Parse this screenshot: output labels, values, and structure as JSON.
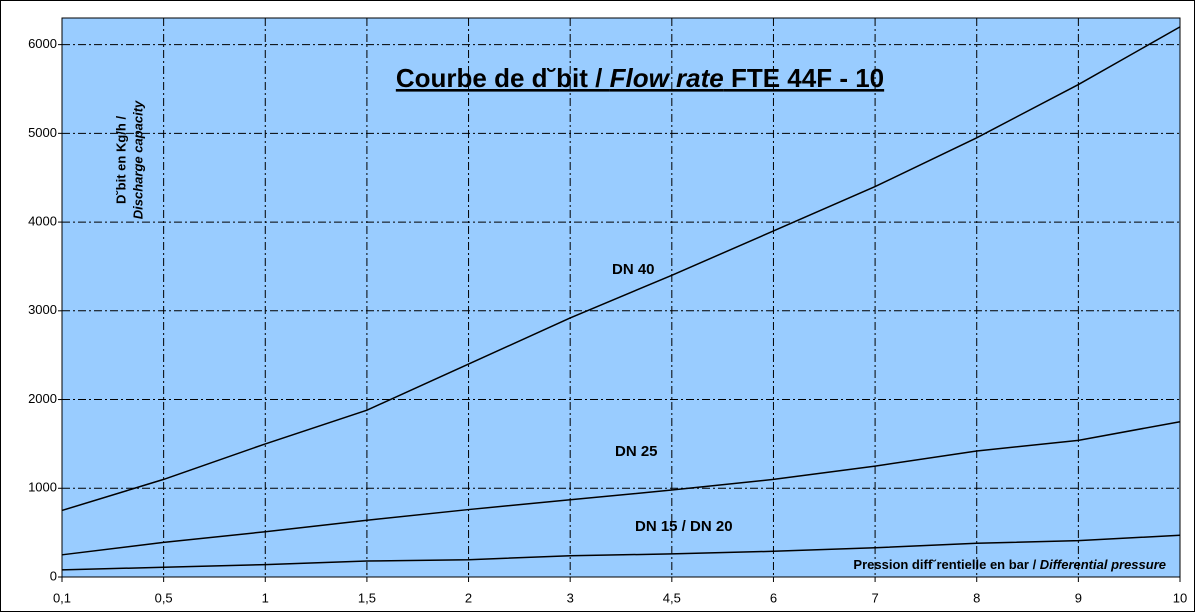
{
  "chart_data": {
    "type": "line",
    "title_start": "Courbe de d˘bit / ",
    "title_italic": "Flow rate",
    "title_end": " FTE 44F - 10",
    "ylabel_line1": "D˘bit en Kg/h /",
    "ylabel_line2": "Discharge capacity",
    "xlabel_start": "Pression diff˘rentielle en bar / ",
    "xlabel_italic": "Differential pressure",
    "categories": [
      "0,1",
      "0,5",
      "1",
      "1,5",
      "2",
      "3",
      "4,5",
      "6",
      "7",
      "8",
      "9",
      "10"
    ],
    "series": [
      {
        "name": "DN 40",
        "color": "#000000",
        "values": [
          750,
          1100,
          1500,
          1880,
          2400,
          2920,
          3400,
          3900,
          4400,
          4950,
          5550,
          6200
        ]
      },
      {
        "name": "DN 25",
        "color": "#000000",
        "values": [
          250,
          390,
          510,
          640,
          760,
          870,
          980,
          1100,
          1250,
          1420,
          1540,
          1750
        ]
      },
      {
        "name": "DN 15 / DN 20",
        "color": "#000000",
        "values": [
          80,
          110,
          140,
          180,
          195,
          240,
          260,
          290,
          330,
          380,
          410,
          470
        ]
      }
    ],
    "ylim": [
      0,
      6300
    ],
    "yticks": [
      0,
      1000,
      2000,
      3000,
      4000,
      5000,
      6000
    ],
    "grid": true,
    "background": "#99ccff"
  }
}
